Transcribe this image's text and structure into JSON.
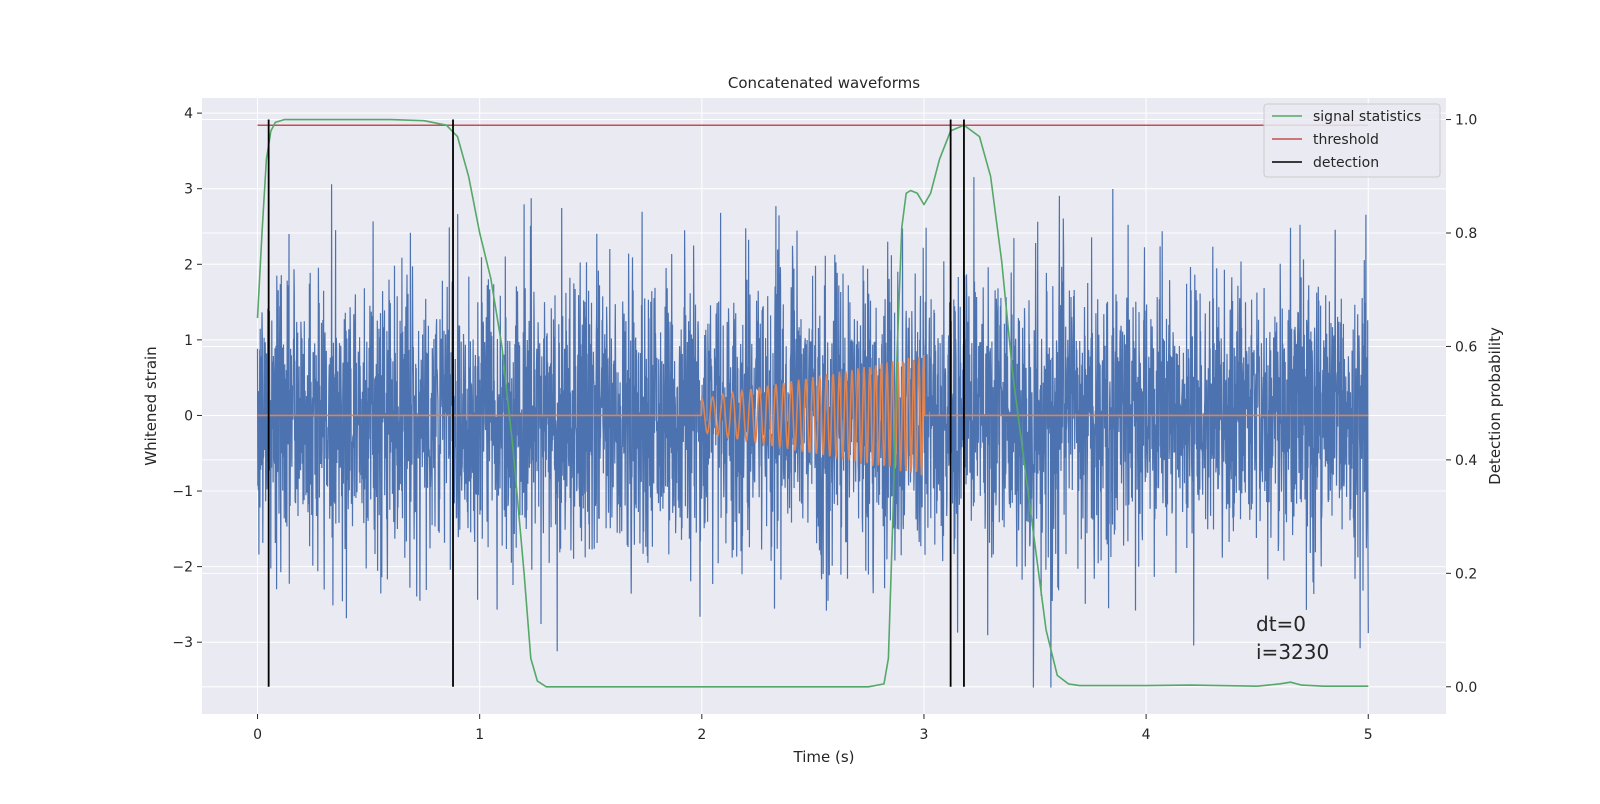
{
  "chart_data": {
    "type": "line",
    "title": "Concatenated waveforms",
    "xlabel": "Time (s)",
    "ylabel": "Whitened strain",
    "y2label": "Detection probability",
    "xlim": [
      -0.25,
      5.35
    ],
    "ylim": [
      -3.95,
      4.2
    ],
    "y2lim": [
      -0.048,
      1.038
    ],
    "xticks": [
      0,
      1,
      2,
      3,
      4,
      5
    ],
    "xtick_labels": [
      "0",
      "1",
      "2",
      "3",
      "4",
      "5"
    ],
    "yticks": [
      -3,
      -2,
      -1,
      0,
      1,
      2,
      3,
      4
    ],
    "ytick_labels": [
      "−3",
      "−2",
      "−1",
      "0",
      "1",
      "2",
      "3",
      "4"
    ],
    "y2ticks": [
      0,
      0.2,
      0.4,
      0.6,
      0.8,
      1.0
    ],
    "y2tick_labels": [
      "0.0",
      "0.2",
      "0.4",
      "0.6",
      "0.8",
      "1.0"
    ],
    "grid": true,
    "legend_position": "top-right",
    "series": [
      {
        "name": "",
        "axis": "left",
        "color": "#4c72b0",
        "description": "whitened strain noise, 0 to 5 s, amplitude about ±2.5 with spikes to about ±3.8"
      },
      {
        "name": "",
        "axis": "left",
        "color": "#dd8452",
        "x_range": [
          0,
          5
        ],
        "chirp_start": 2.0,
        "chirp_end": 3.0,
        "chirp_amplitude_start": 0.22,
        "chirp_amplitude_end": 0.8
      },
      {
        "name": "signal statistics",
        "axis": "right",
        "color": "#55a868",
        "x": [
          0.0,
          0.02,
          0.04,
          0.06,
          0.08,
          0.12,
          0.3,
          0.6,
          0.75,
          0.85,
          0.9,
          0.95,
          1.0,
          1.05,
          1.1,
          1.15,
          1.2,
          1.23,
          1.26,
          1.3,
          1.5,
          2.0,
          2.5,
          2.75,
          2.82,
          2.84,
          2.86,
          2.88,
          2.9,
          2.92,
          2.94,
          2.97,
          3.0,
          3.03,
          3.07,
          3.12,
          3.18,
          3.25,
          3.3,
          3.35,
          3.4,
          3.45,
          3.5,
          3.55,
          3.6,
          3.65,
          3.7,
          4.0,
          4.2,
          4.5,
          4.6,
          4.65,
          4.7,
          4.8,
          5.0
        ],
        "values": [
          0.65,
          0.8,
          0.93,
          0.98,
          0.995,
          1.0,
          1.0,
          1.0,
          0.998,
          0.99,
          0.97,
          0.9,
          0.8,
          0.72,
          0.6,
          0.42,
          0.2,
          0.05,
          0.01,
          0.0,
          0.0,
          0.0,
          0.0,
          0.0,
          0.005,
          0.05,
          0.3,
          0.6,
          0.81,
          0.87,
          0.875,
          0.87,
          0.85,
          0.87,
          0.93,
          0.98,
          0.99,
          0.97,
          0.9,
          0.75,
          0.55,
          0.4,
          0.25,
          0.1,
          0.02,
          0.005,
          0.002,
          0.002,
          0.003,
          0.001,
          0.005,
          0.008,
          0.003,
          0.001,
          0.001
        ]
      },
      {
        "name": "threshold",
        "axis": "right",
        "color": "#c44e52",
        "x": [
          0,
          5
        ],
        "values": [
          0.99,
          0.99
        ]
      },
      {
        "name": "detection",
        "axis": "right",
        "color": "#000000",
        "vlines": [
          0.05,
          0.88,
          3.12,
          3.18
        ],
        "vline_range": [
          0,
          1
        ]
      }
    ],
    "annotations": [
      "dt=0",
      "i=3230"
    ]
  }
}
